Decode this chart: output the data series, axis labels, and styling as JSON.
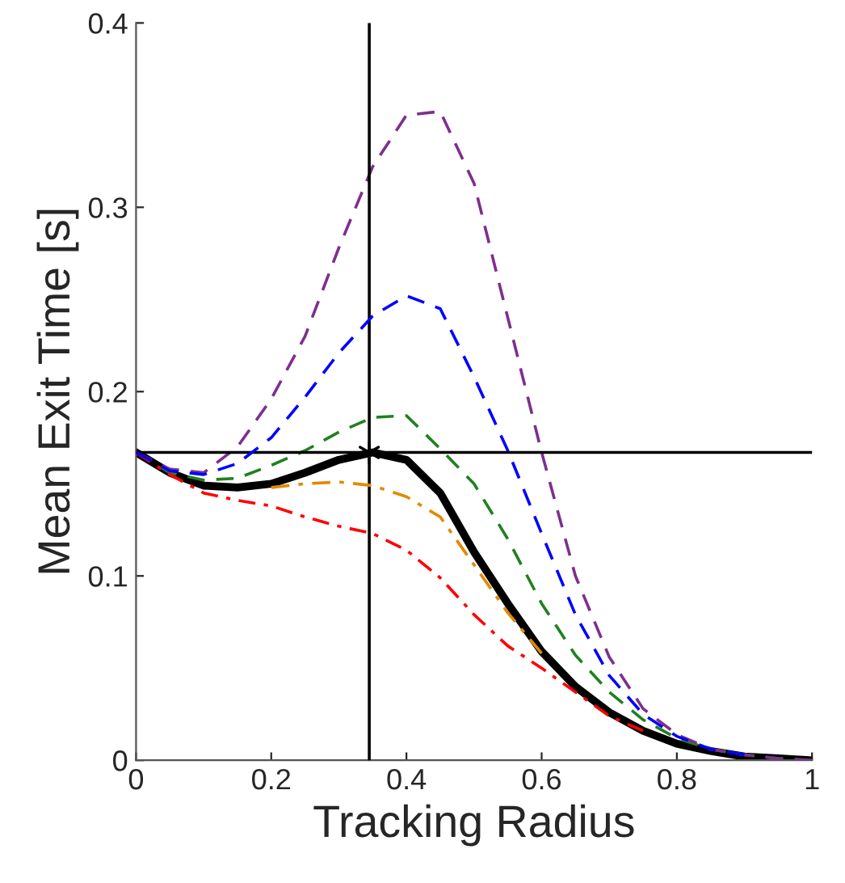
{
  "chart_data": {
    "type": "line",
    "xlabel": "Tracking Radius",
    "ylabel": "Mean Exit Time [s]",
    "x": [
      0,
      0.05,
      0.1,
      0.15,
      0.2,
      0.25,
      0.3,
      0.35,
      0.4,
      0.45,
      0.5,
      0.55,
      0.6,
      0.65,
      0.7,
      0.75,
      0.8,
      0.85,
      0.9,
      0.95,
      1
    ],
    "series": [
      {
        "color": "#7e2f8e",
        "line_style": "dashed",
        "values": [
          0.167,
          0.158,
          0.156,
          0.17,
          0.196,
          0.23,
          0.278,
          0.322,
          0.35,
          0.352,
          0.313,
          0.24,
          0.167,
          0.1,
          0.056,
          0.028,
          0.014,
          0.006,
          0.003,
          0.001,
          0
        ]
      },
      {
        "color": "#0000ff",
        "line_style": "dashed",
        "values": [
          0.167,
          0.157,
          0.155,
          0.161,
          0.175,
          0.197,
          0.221,
          0.241,
          0.252,
          0.245,
          0.208,
          0.168,
          0.123,
          0.079,
          0.046,
          0.025,
          0.013,
          0.006,
          0.003,
          null,
          null
        ]
      },
      {
        "color": "#208020",
        "line_style": "dashed",
        "values": [
          0.167,
          0.156,
          0.152,
          0.153,
          0.16,
          0.168,
          0.178,
          0.186,
          0.187,
          0.169,
          0.15,
          0.12,
          0.085,
          0.057,
          0.037,
          0.022,
          0.012,
          0.006,
          0.003,
          0.001,
          0
        ]
      },
      {
        "color": "#000000",
        "line_style": "solid",
        "values": [
          0.167,
          0.156,
          0.149,
          0.148,
          0.15,
          0.156,
          0.163,
          0.167,
          0.163,
          0.145,
          0.113,
          0.085,
          0.059,
          0.04,
          0.026,
          0.016,
          0.009,
          0.005,
          0.002,
          0.001,
          0
        ]
      },
      {
        "color": "#e08a00",
        "line_style": "dashdot",
        "values": [
          null,
          null,
          null,
          null,
          0.148,
          0.15,
          0.151,
          0.149,
          0.143,
          0.132,
          0.106,
          0.08,
          0.058,
          null,
          null,
          null,
          null,
          null,
          null,
          null,
          null
        ]
      },
      {
        "color": "#ff0000",
        "line_style": "dashdot",
        "values": [
          0.167,
          0.155,
          0.145,
          0.141,
          0.138,
          0.132,
          0.127,
          0.123,
          0.114,
          0.099,
          0.079,
          0.062,
          0.05,
          0.037,
          0.024,
          0.016,
          null,
          null,
          null,
          null,
          null
        ]
      },
      {
        "type": "scatter",
        "marker": "cross",
        "color": "#000000",
        "x": [
          0.345
        ],
        "values": [
          0.167
        ]
      }
    ],
    "ref_lines": [
      {
        "axis": "x",
        "value": 0.345,
        "color": "#000000"
      },
      {
        "axis": "y",
        "value": 0.167,
        "color": "#000000"
      }
    ],
    "xlim": [
      0,
      1
    ],
    "ylim": [
      0,
      0.4
    ],
    "xticks": [
      0,
      0.2,
      0.4,
      0.6,
      0.8,
      1
    ],
    "yticks": [
      0,
      0.1,
      0.2,
      0.3,
      0.4
    ],
    "grid": false
  }
}
